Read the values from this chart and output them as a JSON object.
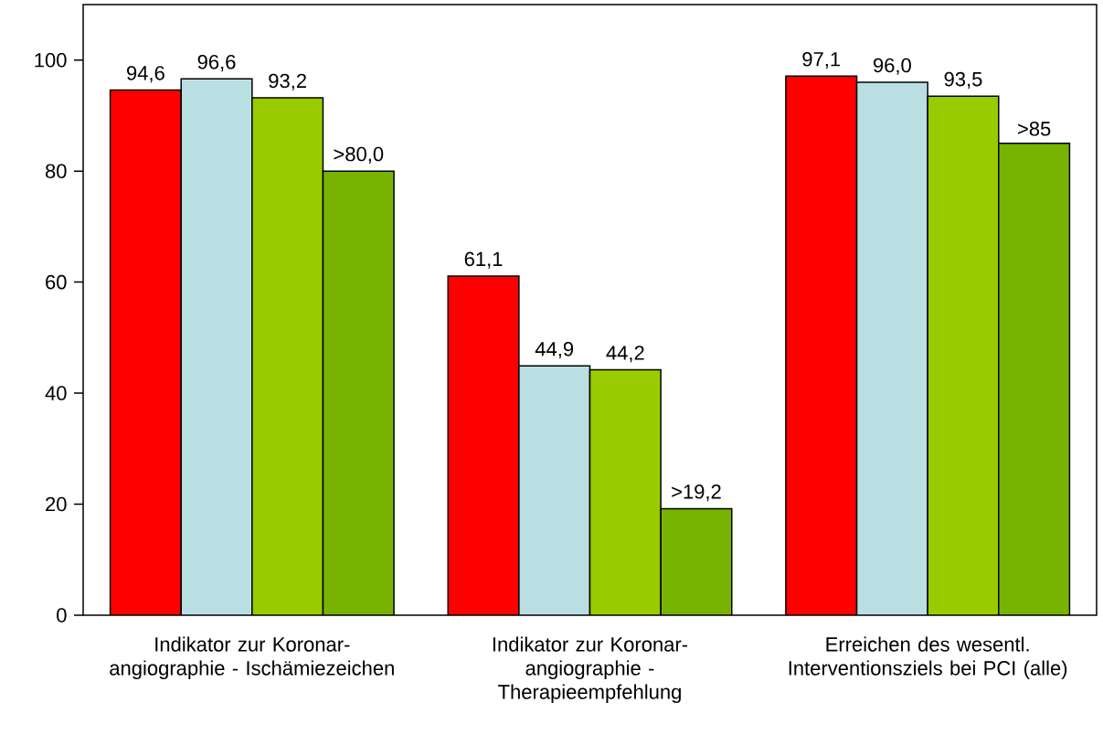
{
  "chart_data": {
    "type": "bar",
    "categories": [
      "Indikator zur Koronar-angiographie - Ischämiezeichen",
      "Indikator zur Koronar-angiographie - Therapieempfehlung",
      "Erreichen des wesentl. Interventionsziels bei PCI (alle)"
    ],
    "series": [
      {
        "color": "#ff0000",
        "values": [
          94.6,
          61.1,
          97.1
        ],
        "value_labels": [
          "94,6",
          "61,1",
          "97,1"
        ]
      },
      {
        "color": "#b9dfe3",
        "values": [
          96.6,
          44.9,
          96.0
        ],
        "value_labels": [
          "96,6",
          "44,9",
          "96,0"
        ]
      },
      {
        "color": "#99cc00",
        "values": [
          93.2,
          44.2,
          93.5
        ],
        "value_labels": [
          "93,2",
          "44,2",
          "93,5"
        ]
      },
      {
        "color": "#77b300",
        "values": [
          80.0,
          19.2,
          85
        ],
        "value_labels": [
          ">80,0",
          ">19,2",
          ">85"
        ]
      }
    ],
    "ylim": [
      0,
      110
    ],
    "yticks": [
      0,
      20,
      40,
      60,
      80,
      100
    ]
  }
}
